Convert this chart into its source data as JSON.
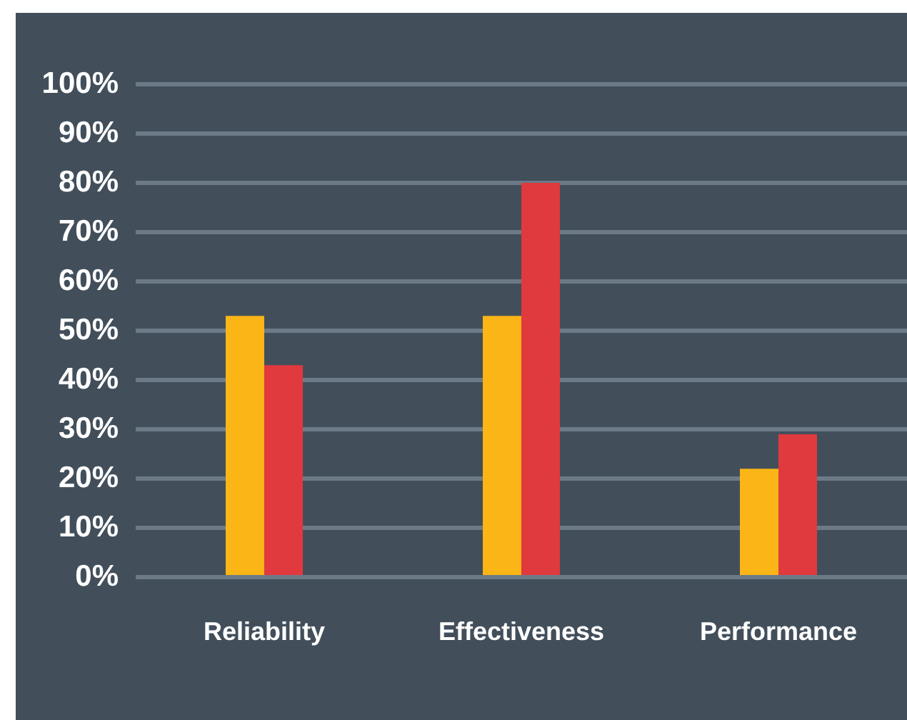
{
  "chart_data": {
    "type": "bar",
    "categories": [
      "Reliability",
      "Effectiveness",
      "Performance"
    ],
    "series": [
      {
        "color": "#fbb516",
        "values": [
          53,
          53,
          22
        ]
      },
      {
        "color": "#e0393e",
        "values": [
          43,
          80,
          29
        ]
      }
    ],
    "ylim": [
      0,
      100
    ],
    "yticks": [
      {
        "value": 0,
        "label": "0%"
      },
      {
        "value": 10,
        "label": "10%"
      },
      {
        "value": 20,
        "label": "20%"
      },
      {
        "value": 30,
        "label": "30%"
      },
      {
        "value": 40,
        "label": "40%"
      },
      {
        "value": 50,
        "label": "50%"
      },
      {
        "value": 60,
        "label": "60%"
      },
      {
        "value": 70,
        "label": "70%"
      },
      {
        "value": 80,
        "label": "80%"
      },
      {
        "value": 90,
        "label": "90%"
      },
      {
        "value": 100,
        "label": "100%"
      }
    ],
    "grid": "y",
    "legend": false
  }
}
